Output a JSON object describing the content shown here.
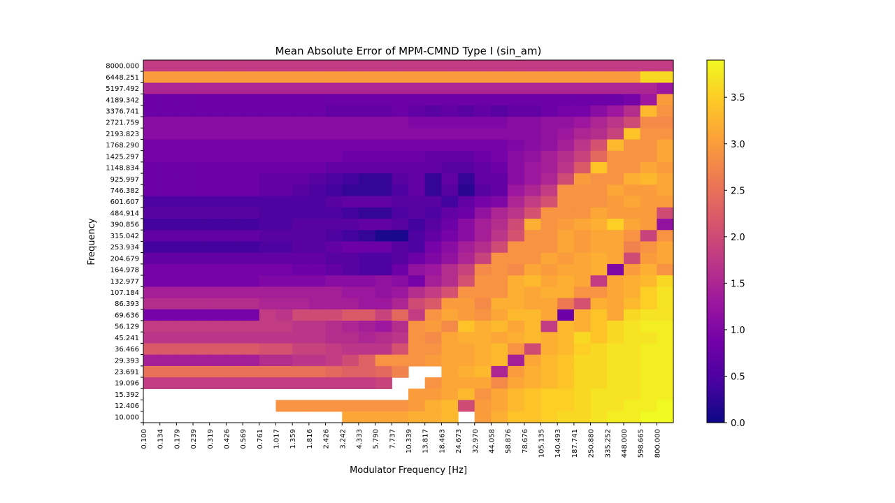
{
  "chart_data": {
    "type": "heatmap",
    "title": "Mean Absolute Error of MPM-CMND Type I  (sin_am)",
    "xlabel": "Modulator Frequency [Hz]",
    "ylabel": "Frequency",
    "colormap": "plasma",
    "vmin": 0.0,
    "vmax": 3.9,
    "colorbar_ticks": [
      "0.0",
      "0.5",
      "1.0",
      "1.5",
      "2.0",
      "2.5",
      "3.0",
      "3.5"
    ],
    "x_tick_labels": [
      "0.100",
      "0.134",
      "0.179",
      "0.239",
      "0.319",
      "0.426",
      "0.569",
      "0.761",
      "1.017",
      "1.359",
      "1.816",
      "2.426",
      "3.242",
      "4.333",
      "5.790",
      "7.737",
      "10.339",
      "13.817",
      "18.463",
      "24.673",
      "32.970",
      "44.058",
      "58.876",
      "78.676",
      "105.135",
      "140.493",
      "187.741",
      "250.880",
      "335.252",
      "448.000",
      "598.665",
      "800.000"
    ],
    "y_tick_labels": [
      "8000.000",
      "6448.251",
      "5197.492",
      "4189.342",
      "3376.741",
      "2721.759",
      "2193.823",
      "1768.290",
      "1425.297",
      "1148.834",
      "925.997",
      "746.382",
      "601.607",
      "484.914",
      "390.856",
      "315.042",
      "253.934",
      "204.679",
      "164.978",
      "132.977",
      "107.184",
      "86.393",
      "69.636",
      "56.129",
      "45.241",
      "36.466",
      "29.393",
      "23.691",
      "19.096",
      "15.392",
      "12.406",
      "10.000"
    ],
    "values": [
      [
        1.8,
        1.8,
        1.8,
        1.8,
        1.8,
        1.8,
        1.8,
        1.8,
        1.8,
        1.8,
        1.8,
        1.8,
        1.8,
        1.8,
        1.8,
        1.8,
        1.8,
        1.8,
        1.8,
        1.8,
        1.8,
        1.8,
        1.8,
        1.8,
        1.8,
        1.8,
        1.8,
        1.8,
        1.8,
        1.8,
        1.8,
        1.8
      ],
      [
        3.0,
        3.0,
        3.0,
        3.0,
        3.0,
        3.0,
        3.0,
        3.0,
        3.0,
        3.0,
        3.0,
        3.0,
        3.0,
        3.0,
        3.0,
        3.0,
        3.0,
        3.0,
        3.0,
        3.0,
        3.0,
        3.0,
        3.0,
        3.0,
        3.0,
        3.0,
        3.0,
        3.0,
        3.0,
        3.0,
        3.6,
        3.6
      ],
      [
        1.5,
        1.5,
        1.5,
        1.5,
        1.5,
        1.5,
        1.5,
        1.5,
        1.5,
        1.5,
        1.5,
        1.5,
        1.5,
        1.5,
        1.5,
        1.5,
        1.5,
        1.5,
        1.5,
        1.5,
        1.5,
        1.5,
        1.5,
        1.5,
        1.5,
        1.5,
        1.5,
        1.5,
        1.5,
        1.5,
        1.5,
        1.3
      ],
      [
        0.8,
        0.8,
        0.8,
        0.8,
        0.8,
        0.8,
        0.8,
        0.8,
        0.8,
        0.8,
        0.8,
        0.8,
        0.8,
        0.8,
        0.8,
        0.8,
        0.8,
        0.8,
        0.8,
        0.8,
        0.8,
        0.8,
        0.8,
        0.8,
        0.8,
        0.8,
        0.8,
        0.8,
        0.8,
        0.9,
        1.3,
        3.0
      ],
      [
        0.8,
        0.8,
        0.8,
        0.8,
        0.8,
        0.8,
        0.8,
        0.8,
        0.8,
        0.8,
        0.8,
        0.7,
        0.7,
        0.7,
        0.7,
        0.8,
        0.7,
        0.6,
        0.7,
        0.6,
        0.7,
        0.6,
        0.7,
        0.7,
        0.8,
        0.9,
        0.9,
        1.1,
        1.3,
        1.6,
        3.3,
        2.9
      ],
      [
        1.1,
        1.1,
        1.1,
        1.1,
        1.1,
        1.1,
        1.1,
        1.1,
        1.1,
        1.1,
        1.1,
        1.1,
        1.1,
        1.1,
        1.1,
        1.1,
        1.0,
        1.0,
        1.0,
        1.0,
        1.0,
        1.0,
        1.1,
        1.1,
        1.2,
        1.2,
        1.3,
        1.5,
        1.7,
        2.0,
        2.8,
        2.8
      ],
      [
        1.1,
        1.1,
        1.1,
        1.1,
        1.1,
        1.1,
        1.1,
        1.1,
        1.1,
        1.1,
        1.1,
        1.1,
        1.1,
        1.1,
        1.1,
        1.1,
        1.1,
        1.1,
        1.1,
        1.1,
        1.1,
        1.1,
        1.1,
        1.1,
        1.2,
        1.3,
        1.5,
        1.6,
        1.9,
        3.4,
        2.9,
        2.9
      ],
      [
        0.9,
        0.9,
        0.9,
        0.9,
        0.9,
        0.9,
        0.9,
        0.9,
        0.9,
        0.9,
        0.9,
        0.9,
        0.9,
        0.9,
        0.9,
        0.9,
        0.9,
        0.9,
        0.9,
        0.9,
        0.9,
        0.9,
        1.0,
        1.1,
        1.2,
        1.4,
        1.7,
        2.1,
        3.3,
        2.9,
        2.9,
        3.1
      ],
      [
        0.9,
        0.9,
        0.9,
        0.9,
        0.9,
        0.9,
        0.9,
        0.9,
        0.9,
        0.9,
        0.9,
        0.9,
        0.8,
        0.8,
        0.8,
        0.8,
        0.8,
        0.7,
        0.7,
        0.7,
        0.8,
        0.9,
        1.1,
        1.2,
        1.4,
        1.6,
        1.9,
        2.4,
        2.9,
        2.9,
        2.9,
        3.1
      ],
      [
        0.8,
        0.8,
        0.8,
        0.8,
        0.8,
        0.8,
        0.8,
        0.8,
        0.8,
        0.8,
        0.8,
        0.7,
        0.7,
        0.7,
        0.7,
        0.7,
        0.7,
        0.7,
        0.6,
        0.6,
        0.7,
        0.8,
        1.1,
        1.3,
        1.4,
        1.7,
        2.2,
        3.4,
        2.9,
        2.9,
        3.1,
        3.0
      ],
      [
        0.8,
        0.8,
        0.8,
        0.8,
        0.8,
        0.8,
        0.8,
        0.7,
        0.7,
        0.7,
        0.6,
        0.5,
        0.4,
        0.3,
        0.3,
        0.6,
        0.7,
        0.3,
        0.7,
        0.3,
        0.7,
        0.7,
        1.1,
        1.3,
        1.5,
        2.0,
        3.0,
        2.9,
        2.9,
        3.2,
        3.3,
        3.1
      ],
      [
        0.8,
        0.8,
        0.8,
        0.8,
        0.8,
        0.8,
        0.8,
        0.7,
        0.7,
        0.6,
        0.5,
        0.4,
        0.3,
        0.3,
        0.3,
        0.5,
        0.7,
        0.3,
        0.6,
        0.2,
        0.6,
        0.7,
        1.3,
        1.5,
        1.8,
        2.9,
        2.9,
        2.9,
        3.1,
        3.0,
        3.0,
        3.1
      ],
      [
        0.5,
        0.5,
        0.5,
        0.5,
        0.5,
        0.5,
        0.5,
        0.5,
        0.5,
        0.5,
        0.5,
        0.6,
        0.7,
        0.7,
        0.7,
        0.6,
        0.6,
        0.6,
        0.4,
        0.7,
        0.9,
        1.0,
        1.5,
        1.8,
        2.1,
        2.9,
        2.9,
        2.9,
        3.0,
        3.1,
        3.0,
        3.0
      ],
      [
        0.6,
        0.6,
        0.6,
        0.6,
        0.6,
        0.6,
        0.6,
        0.5,
        0.5,
        0.5,
        0.5,
        0.5,
        0.4,
        0.3,
        0.3,
        0.5,
        0.6,
        0.5,
        0.7,
        0.8,
        1.2,
        1.5,
        1.7,
        2.1,
        2.9,
        2.9,
        2.9,
        3.1,
        3.0,
        3.0,
        3.0,
        2.0
      ],
      [
        0.4,
        0.4,
        0.4,
        0.4,
        0.4,
        0.4,
        0.4,
        0.5,
        0.5,
        0.6,
        0.6,
        0.6,
        0.6,
        0.7,
        0.7,
        0.6,
        0.4,
        0.6,
        0.8,
        1.1,
        1.4,
        1.6,
        2.0,
        3.2,
        2.9,
        3.0,
        3.1,
        3.2,
        3.5,
        3.1,
        3.0,
        1.2
      ],
      [
        0.7,
        0.7,
        0.7,
        0.7,
        0.7,
        0.7,
        0.7,
        0.6,
        0.6,
        0.6,
        0.6,
        0.5,
        0.4,
        0.3,
        0.1,
        0.1,
        0.5,
        0.7,
        0.9,
        1.1,
        1.4,
        1.7,
        2.1,
        2.9,
        2.9,
        3.1,
        3.0,
        3.1,
        3.1,
        2.9,
        1.9,
        2.9
      ],
      [
        0.4,
        0.4,
        0.4,
        0.4,
        0.4,
        0.4,
        0.4,
        0.5,
        0.5,
        0.6,
        0.6,
        0.7,
        0.8,
        0.8,
        0.8,
        0.6,
        0.5,
        0.9,
        1.1,
        1.4,
        1.6,
        2.0,
        2.9,
        2.9,
        2.9,
        3.1,
        3.0,
        3.1,
        3.1,
        2.7,
        2.9,
        3.1
      ],
      [
        0.7,
        0.7,
        0.7,
        0.7,
        0.7,
        0.7,
        0.7,
        0.7,
        0.7,
        0.7,
        0.7,
        0.6,
        0.6,
        0.5,
        0.5,
        0.6,
        0.8,
        1.0,
        1.2,
        1.5,
        1.9,
        2.9,
        2.9,
        2.9,
        3.1,
        3.0,
        3.1,
        3.2,
        3.1,
        2.0,
        3.0,
        3.1
      ],
      [
        0.9,
        0.9,
        0.9,
        0.9,
        0.9,
        0.9,
        0.9,
        0.9,
        0.9,
        0.8,
        0.8,
        0.7,
        0.6,
        0.5,
        0.5,
        0.8,
        1.2,
        1.3,
        1.6,
        1.9,
        2.8,
        2.9,
        2.8,
        3.1,
        3.0,
        3.1,
        3.1,
        3.2,
        1.0,
        3.0,
        3.2,
        2.9
      ],
      [
        0.9,
        0.9,
        0.9,
        0.9,
        0.9,
        0.9,
        0.9,
        1.0,
        1.0,
        1.0,
        1.0,
        1.1,
        1.1,
        1.1,
        1.2,
        1.1,
        0.9,
        1.4,
        1.6,
        2.1,
        2.9,
        2.9,
        3.2,
        3.3,
        3.1,
        3.2,
        3.1,
        1.8,
        3.1,
        3.2,
        3.3,
        3.6
      ],
      [
        1.4,
        1.4,
        1.4,
        1.4,
        1.4,
        1.4,
        1.4,
        1.4,
        1.4,
        1.4,
        1.4,
        1.4,
        1.3,
        1.3,
        1.2,
        1.3,
        1.6,
        1.8,
        2.1,
        2.9,
        2.9,
        2.9,
        3.2,
        3.1,
        3.2,
        3.2,
        2.9,
        2.9,
        3.1,
        3.2,
        3.5,
        3.7
      ],
      [
        1.6,
        1.6,
        1.6,
        1.6,
        1.6,
        1.6,
        1.6,
        1.5,
        1.5,
        1.5,
        1.4,
        1.4,
        1.4,
        1.3,
        1.3,
        1.5,
        2.0,
        2.2,
        3.0,
        3.0,
        2.8,
        3.2,
        3.2,
        3.1,
        3.1,
        2.6,
        2.1,
        3.2,
        3.1,
        3.3,
        3.5,
        3.7
      ],
      [
        0.9,
        0.9,
        0.9,
        0.9,
        0.9,
        0.9,
        0.9,
        1.8,
        1.7,
        2.0,
        2.0,
        2.0,
        2.2,
        2.2,
        1.9,
        2.4,
        1.8,
        2.9,
        3.1,
        3.0,
        2.9,
        3.1,
        3.3,
        3.3,
        3.1,
        0.8,
        3.2,
        3.4,
        3.1,
        3.6,
        3.7,
        3.7
      ],
      [
        1.8,
        1.8,
        1.8,
        1.8,
        1.8,
        1.8,
        1.8,
        1.8,
        1.8,
        1.7,
        1.7,
        1.6,
        1.5,
        1.4,
        1.3,
        1.6,
        2.9,
        3.0,
        2.8,
        3.4,
        3.2,
        3.3,
        3.1,
        3.3,
        1.8,
        3.3,
        3.2,
        3.4,
        3.6,
        3.7,
        3.8,
        3.8
      ],
      [
        1.7,
        1.7,
        1.7,
        1.7,
        1.7,
        1.7,
        1.7,
        1.7,
        1.7,
        1.7,
        1.7,
        1.6,
        1.6,
        1.5,
        1.6,
        1.7,
        2.9,
        2.8,
        3.1,
        3.2,
        3.2,
        3.1,
        3.2,
        3.3,
        3.2,
        3.3,
        3.6,
        3.4,
        3.6,
        3.7,
        3.7,
        3.8
      ],
      [
        2.2,
        2.2,
        2.2,
        2.2,
        2.2,
        2.2,
        2.2,
        2.1,
        2.1,
        1.9,
        1.9,
        1.8,
        1.7,
        1.7,
        1.7,
        2.1,
        2.9,
        2.9,
        3.1,
        3.1,
        3.2,
        3.3,
        2.9,
        2.0,
        3.2,
        3.3,
        3.5,
        3.6,
        3.7,
        3.7,
        3.8,
        3.8
      ],
      [
        1.4,
        1.4,
        1.4,
        1.4,
        1.4,
        1.4,
        1.4,
        1.6,
        1.6,
        1.7,
        1.7,
        1.8,
        2.0,
        2.3,
        2.9,
        2.9,
        2.9,
        3.0,
        3.1,
        3.1,
        3.2,
        3.3,
        1.4,
        3.1,
        3.3,
        3.4,
        3.6,
        3.6,
        3.7,
        3.7,
        3.8,
        3.8
      ],
      [
        2.5,
        2.5,
        2.5,
        2.5,
        2.5,
        2.5,
        2.5,
        2.5,
        2.5,
        2.5,
        2.5,
        2.4,
        2.3,
        2.3,
        2.4,
        2.7,
        null,
        null,
        3.1,
        3.2,
        3.3,
        1.5,
        3.0,
        3.2,
        3.3,
        3.4,
        3.6,
        3.6,
        3.7,
        3.7,
        3.8,
        3.8
      ],
      [
        1.8,
        1.8,
        1.8,
        1.8,
        1.8,
        1.8,
        1.8,
        1.8,
        1.8,
        1.8,
        1.8,
        1.8,
        1.8,
        1.8,
        1.9,
        null,
        null,
        2.9,
        3.1,
        3.1,
        3.1,
        2.8,
        3.1,
        3.2,
        3.3,
        3.4,
        3.6,
        3.6,
        3.7,
        3.7,
        3.8,
        3.8
      ],
      [
        null,
        null,
        null,
        null,
        null,
        null,
        null,
        null,
        null,
        null,
        null,
        null,
        null,
        null,
        null,
        null,
        3.0,
        3.0,
        3.1,
        3.3,
        2.9,
        3.1,
        3.3,
        3.4,
        3.5,
        3.5,
        3.6,
        3.7,
        3.7,
        3.7,
        3.8,
        3.8
      ],
      [
        null,
        null,
        null,
        null,
        null,
        null,
        null,
        null,
        2.9,
        2.9,
        2.9,
        2.9,
        2.9,
        2.9,
        2.9,
        2.9,
        3.0,
        3.2,
        3.3,
        2.0,
        3.0,
        3.1,
        3.3,
        3.4,
        3.5,
        3.5,
        3.6,
        3.7,
        3.7,
        3.8,
        3.8,
        3.9
      ],
      [
        null,
        null,
        null,
        null,
        null,
        null,
        null,
        null,
        null,
        null,
        null,
        null,
        3.1,
        3.1,
        3.1,
        3.1,
        3.2,
        3.2,
        3.3,
        null,
        3.0,
        3.2,
        3.4,
        3.4,
        3.5,
        3.6,
        3.6,
        3.7,
        3.8,
        3.8,
        3.9,
        3.9
      ]
    ]
  }
}
